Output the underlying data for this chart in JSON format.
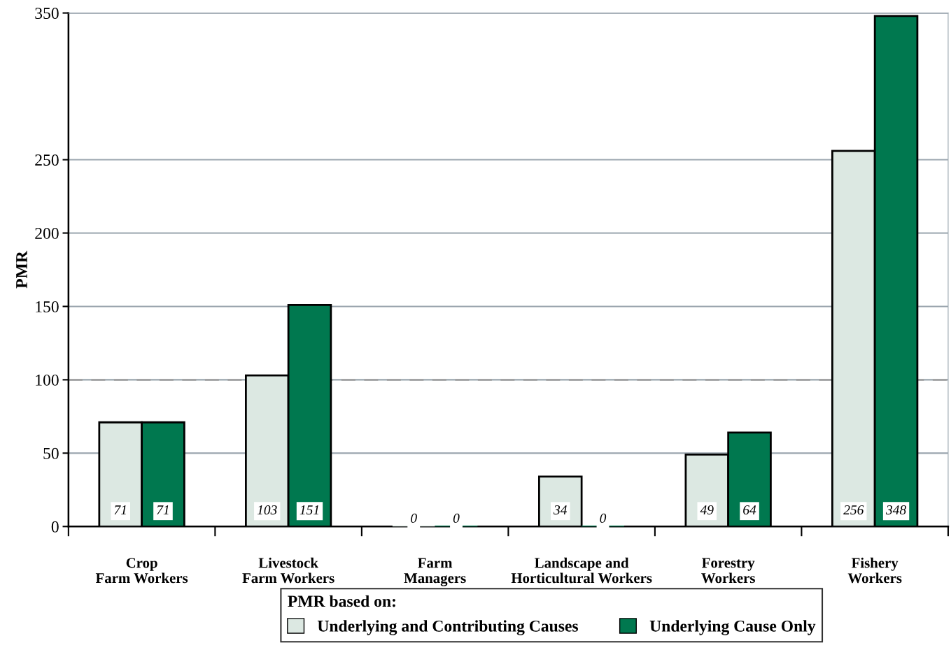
{
  "chart_data": {
    "type": "bar",
    "ylabel": "PMR",
    "categories": [
      "Crop\nFarm Workers",
      "Livestock\nFarm Workers",
      "Farm\nManagers",
      "Landscape and\nHorticultural Workers",
      "Forestry\nWorkers",
      "Fishery\nWorkers"
    ],
    "series": [
      {
        "name": "Underlying and Contributing Causes",
        "color": "#dce8e2",
        "values": [
          71,
          103,
          0,
          34,
          49,
          256
        ]
      },
      {
        "name": "Underlying Cause Only",
        "color": "#00784f",
        "values": [
          71,
          151,
          0,
          0,
          64,
          348
        ]
      }
    ],
    "ylim": [
      0,
      350
    ],
    "yticks": [
      0,
      50,
      100,
      150,
      200,
      250,
      350
    ],
    "grid": "y",
    "data_labels": true,
    "legend": "bottom",
    "legend_title": "PMR based on:",
    "ref_lines": [
      {
        "axis": "y",
        "value": 100,
        "color": "#a0a0a0",
        "line_style": "dashed"
      }
    ]
  }
}
